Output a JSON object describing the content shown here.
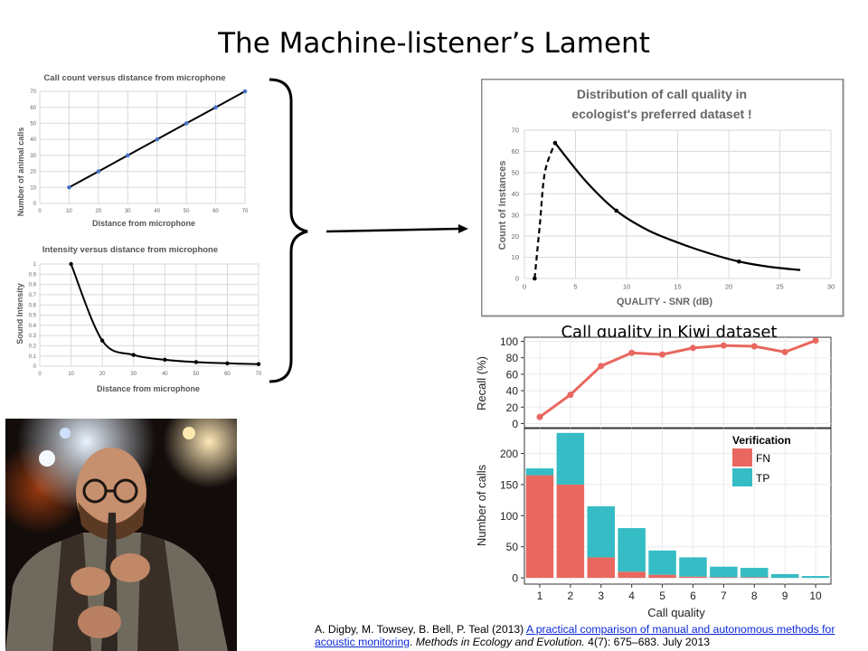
{
  "slide": {
    "title": "The Machine-listener’s Lament"
  },
  "chart_data": [
    {
      "id": "calls",
      "type": "line",
      "title": "Call count versus distance from microphone",
      "xlabel": "Distance from microphone",
      "ylabel": "Number of animal calls",
      "xlim": [
        0,
        70
      ],
      "ylim": [
        0,
        70
      ],
      "xticks": [
        0,
        10,
        20,
        30,
        40,
        50,
        60,
        70
      ],
      "yticks": [
        0,
        10,
        20,
        30,
        40,
        50,
        60,
        70
      ],
      "x": [
        10,
        20,
        30,
        40,
        50,
        60,
        70
      ],
      "y": [
        10,
        20,
        30,
        40,
        50,
        60,
        70
      ],
      "grid": true,
      "line_color": "#000000",
      "marker_color": "#4472c4"
    },
    {
      "id": "intensity",
      "type": "line",
      "title": "Intensity versus distance from microphone",
      "xlabel": "Distance from microphone",
      "ylabel": "Sound Intensity",
      "xlim": [
        0,
        70
      ],
      "ylim": [
        0,
        1
      ],
      "xticks": [
        0,
        10,
        20,
        30,
        40,
        50,
        60,
        70
      ],
      "yticks": [
        0,
        0.1,
        0.2,
        0.3,
        0.4,
        0.5,
        0.6,
        0.7,
        0.8,
        0.9,
        1
      ],
      "x": [
        10,
        20,
        30,
        40,
        50,
        60,
        70
      ],
      "y": [
        1,
        0.25,
        0.11,
        0.063,
        0.04,
        0.028,
        0.02
      ],
      "grid": true,
      "line_color": "#000000"
    },
    {
      "id": "quality",
      "type": "line",
      "title": "Distribution of call quality in ecologist's preferred dataset !",
      "title_lines": [
        "Distribution of call quality in",
        "ecologist's preferred dataset !"
      ],
      "xlabel": "QUALITY - SNR (dB)",
      "ylabel": "Count of Instances",
      "xlim": [
        0,
        30
      ],
      "ylim": [
        0,
        70
      ],
      "xticks": [
        0,
        5,
        10,
        15,
        20,
        25,
        30
      ],
      "yticks": [
        0,
        10,
        20,
        30,
        40,
        50,
        60,
        70
      ],
      "dashed": {
        "x": [
          1,
          1.5,
          2,
          3
        ],
        "y": [
          0,
          25,
          50,
          64
        ]
      },
      "solid": {
        "x": [
          3,
          6,
          9,
          12,
          15,
          18,
          21,
          24,
          27
        ],
        "y": [
          64,
          46,
          32,
          23,
          17,
          12,
          8,
          5.5,
          4
        ]
      },
      "points": {
        "x": [
          1,
          3,
          9,
          21
        ],
        "y": [
          0,
          64,
          32,
          8
        ]
      },
      "grid": true
    },
    {
      "id": "recall",
      "type": "line",
      "title": "Call quality in Kiwi dataset",
      "ylabel": "Recall (%)",
      "xlim": [
        0.5,
        10.5
      ],
      "ylim": [
        0,
        100
      ],
      "yticks": [
        0,
        20,
        40,
        60,
        80,
        100
      ],
      "x": [
        1,
        2,
        3,
        4,
        5,
        6,
        7,
        8,
        9,
        10
      ],
      "y": [
        8,
        35,
        70,
        86,
        84,
        92,
        95,
        94,
        87,
        101
      ],
      "color": "#e8685f",
      "grid": true
    },
    {
      "id": "calls_bar",
      "type": "bar",
      "stacked": true,
      "xlabel": "Call quality",
      "ylabel": "Number of calls",
      "categories": [
        "1",
        "2",
        "3",
        "4",
        "5",
        "6",
        "7",
        "8",
        "9",
        "10"
      ],
      "ylim": [
        0,
        240
      ],
      "yticks": [
        0,
        50,
        100,
        150,
        200
      ],
      "series": [
        {
          "name": "FN",
          "values": [
            165,
            150,
            33,
            10,
            5,
            2,
            1,
            1,
            0,
            0
          ],
          "color": "#e8685f"
        },
        {
          "name": "TP",
          "values": [
            11,
            83,
            82,
            70,
            39,
            31,
            17,
            15,
            6,
            3
          ],
          "color": "#35bcc4"
        }
      ],
      "legend_title": "Verification",
      "legend_position": "top-right",
      "grid": true
    }
  ],
  "citation": {
    "prefix": "A. Digby, M. Towsey, B. Bell, P. Teal (2013) ",
    "link_text": "A practical comparison of manual and autonomous methods for acoustic monitoring",
    "after_link": ". ",
    "journal": "Methods in Ecology and Evolution.",
    "suffix": " 4(7): 675–683. July 2013"
  },
  "colors": {
    "accent_red": "#e8685f",
    "accent_teal": "#35bcc4",
    "link": "#0b27d6",
    "marker_blue": "#4472c4"
  }
}
